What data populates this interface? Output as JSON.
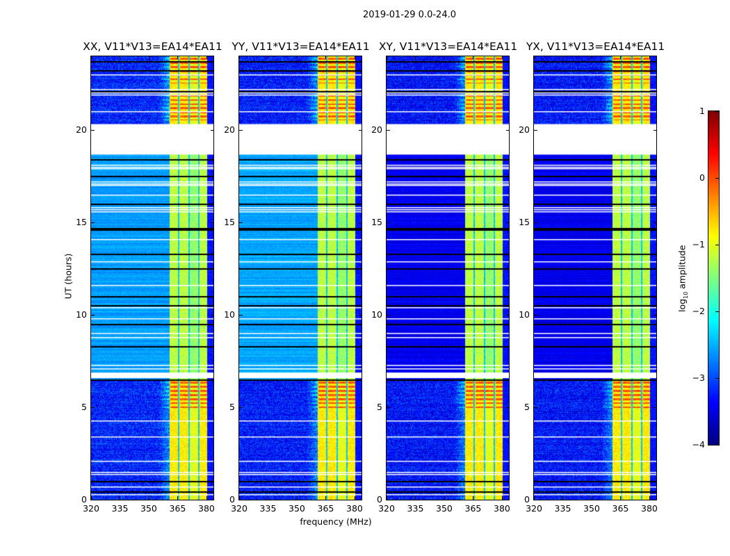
{
  "figure_title": "2019-01-29 0.0-24.0",
  "chart_data": {
    "type": "heatmap",
    "title": "2019-01-29 0.0-24.0",
    "xlabel": "frequency (MHz)",
    "ylabel": "UT (hours)",
    "xlim": [
      320,
      384
    ],
    "ylim": [
      0,
      24
    ],
    "xticks": [
      "320",
      "335",
      "350",
      "365",
      "380"
    ],
    "xtick_values": [
      320,
      335,
      350,
      365,
      380
    ],
    "yticks": [
      "0",
      "5",
      "10",
      "15",
      "20"
    ],
    "ytick_values": [
      0,
      5,
      10,
      15,
      20
    ],
    "colormap": "jet",
    "colorbar": {
      "label_main": "log",
      "label_sub": "10",
      "label_rest": " amplitude",
      "range": [
        -4,
        1
      ],
      "ticks": [
        "1",
        "0",
        "−1",
        "−2",
        "−3",
        "−4"
      ],
      "tick_values": [
        1,
        0,
        -1,
        -2,
        -3,
        -4
      ]
    },
    "panels": [
      {
        "title": "XX, V11*V13=EA14*EA11",
        "baseline_day": -2.6,
        "baseline_night": -3.2
      },
      {
        "title": "YY, V11*V13=EA14*EA11",
        "baseline_day": -2.55,
        "baseline_night": -3.25
      },
      {
        "title": "XY, V11*V13=EA14*EA11",
        "baseline_day": -3.45,
        "baseline_night": -3.3
      },
      {
        "title": "YX, V11*V13=EA14*EA11",
        "baseline_day": -3.45,
        "baseline_night": -3.3
      }
    ],
    "data_gap_hours": [
      18.65,
      20.3
    ],
    "flagged_block_hours": [
      6.57,
      6.87
    ],
    "rfi_band_mhz": [
      360.7,
      380.4
    ],
    "rfi_notch_mhz": [
      365.5,
      371.0,
      376.0
    ],
    "rfi_level_day": -1.2,
    "rfi_level_night": -0.8,
    "rfi_peak_level": 0.2,
    "rfi_peak_hours": [
      [
        4.8,
        6.5
      ],
      [
        20.5,
        22.0
      ],
      [
        22.5,
        24.0
      ]
    ],
    "white_row_hours": [
      0.3,
      0.7,
      1.4,
      1.5,
      2.1,
      3.4,
      4.3,
      7.1,
      7.3,
      8.8,
      9.0,
      9.8,
      10.4,
      11.6,
      12.9,
      14.1,
      15.6,
      15.7,
      15.8,
      16.5,
      17.0,
      17.1,
      17.2,
      17.9,
      18.0,
      18.1,
      21.0,
      21.9,
      22.0,
      22.2,
      23.0
    ],
    "black_row_hours": [
      0.45,
      1.0,
      6.5,
      8.3,
      9.5,
      10.5,
      11.0,
      12.5,
      13.3,
      14.6,
      14.7,
      16.0,
      17.5,
      18.4,
      22.1,
      23.2,
      23.7
    ]
  }
}
